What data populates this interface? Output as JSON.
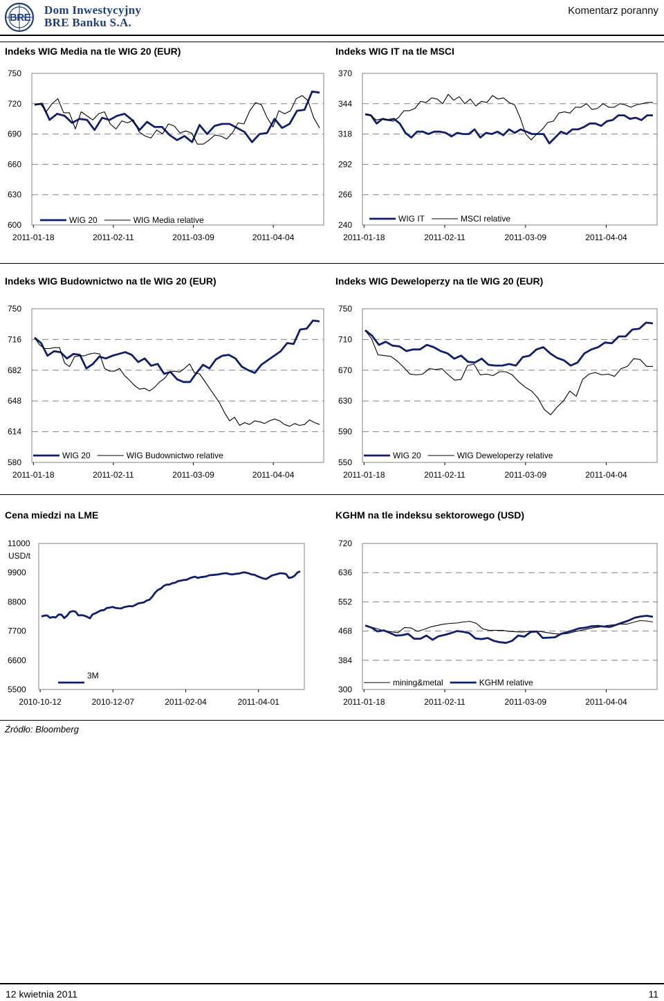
{
  "header": {
    "logo_line1": "Dom Inwestycyjny",
    "logo_line2": "BRE Banku S.A.",
    "logo_mark": "BRE",
    "report_type": "Komentarz poranny"
  },
  "colors": {
    "series_primary": "#0f1f6e",
    "series_secondary": "#000000",
    "grid": "#808080",
    "brand": "#1f3f7c"
  },
  "source_note": "Źródło: Bloomberg",
  "footer": {
    "date": "12 kwietnia 2011",
    "page": "11"
  },
  "chart_data": [
    {
      "type": "line",
      "title": "Indeks WIG Media na tle WIG 20 (EUR)",
      "unit": "",
      "yticks": [
        "750",
        "720",
        "690",
        "660",
        "630",
        "600"
      ],
      "ylim": [
        600,
        750
      ],
      "xticks": [
        "2011-01-18",
        "2011-02-11",
        "2011-03-09",
        "2011-04-04"
      ],
      "grid": true,
      "legend": "bottom",
      "series": [
        {
          "name": "WIG 20",
          "style": "thick",
          "values": [
            719,
            720,
            704,
            710,
            708,
            701,
            705,
            704,
            694,
            706,
            704,
            708,
            710,
            704,
            694,
            702,
            697,
            697,
            689,
            684,
            688,
            682,
            699,
            690,
            698,
            700,
            700,
            696,
            692,
            682,
            690,
            691,
            705,
            696,
            700,
            713,
            714,
            732,
            731
          ]
        },
        {
          "name": "WIG Media relative",
          "style": "thin",
          "values": [
            719,
            720,
            712,
            720,
            725,
            711,
            711,
            695,
            712,
            708,
            704,
            710,
            712,
            700,
            695,
            703,
            701,
            704,
            692,
            688,
            686,
            694,
            690,
            700,
            698,
            691,
            693,
            691,
            680,
            680,
            684,
            689,
            688,
            685,
            691,
            701,
            700,
            713,
            721,
            719,
            706,
            697,
            713,
            710,
            713,
            725,
            728,
            723,
            706,
            696
          ]
        }
      ]
    },
    {
      "type": "line",
      "title": "Indeks WIG IT na tle MSCI",
      "unit": "",
      "yticks": [
        "370",
        "344",
        "318",
        "292",
        "266",
        "240"
      ],
      "ylim": [
        240,
        370
      ],
      "xticks": [
        "2011-01-18",
        "2011-02-11",
        "2011-03-09",
        "2011-04-04"
      ],
      "grid": true,
      "legend": "bottom",
      "series": [
        {
          "name": "WIG IT",
          "style": "thick",
          "values": [
            335,
            334,
            327,
            331,
            330,
            331,
            327,
            319,
            315,
            320,
            320,
            318,
            320,
            320,
            319,
            316,
            319,
            318,
            318,
            322,
            315,
            319,
            318,
            320,
            317,
            322,
            319,
            322,
            320,
            318,
            318,
            318,
            310,
            315,
            320,
            318,
            322,
            322,
            324,
            327,
            327,
            325,
            329,
            330,
            334,
            334,
            331,
            332,
            330,
            334,
            334
          ]
        },
        {
          "name": "MSCI relative",
          "style": "thin",
          "values": [
            335,
            334,
            330,
            331,
            330,
            329,
            332,
            338,
            338,
            340,
            346,
            345,
            349,
            348,
            344,
            352,
            347,
            350,
            344,
            348,
            342,
            346,
            345,
            351,
            348,
            349,
            345,
            343,
            332,
            318,
            313,
            318,
            322,
            328,
            329,
            336,
            337,
            336,
            341,
            341,
            344,
            339,
            340,
            344,
            341,
            341,
            344,
            343,
            341,
            343,
            344,
            345,
            345
          ]
        }
      ]
    },
    {
      "type": "line",
      "title": "Indeks WIG Budownictwo na tle WIG 20 (EUR)",
      "unit": "",
      "yticks": [
        "750",
        "716",
        "682",
        "648",
        "614",
        "580"
      ],
      "ylim": [
        580,
        750
      ],
      "xticks": [
        "2011-01-18",
        "2011-02-11",
        "2011-03-09",
        "2011-04-04"
      ],
      "grid": true,
      "legend": "bottom",
      "series": [
        {
          "name": "WIG 20",
          "style": "thick",
          "values": [
            718,
            712,
            698,
            703,
            702,
            695,
            700,
            699,
            684,
            689,
            697,
            695,
            698,
            700,
            702,
            699,
            691,
            695,
            687,
            689,
            678,
            680,
            672,
            669,
            669,
            679,
            688,
            684,
            694,
            698,
            699,
            695,
            686,
            682,
            679,
            688,
            693,
            698,
            703,
            712,
            711,
            727,
            728,
            737,
            736
          ]
        },
        {
          "name": "WIG Budownictwo relative",
          "style": "thin",
          "values": [
            718,
            710,
            706,
            706,
            707,
            707,
            690,
            686,
            697,
            698,
            698,
            700,
            701,
            700,
            684,
            681,
            681,
            684,
            676,
            671,
            665,
            661,
            662,
            659,
            663,
            669,
            673,
            680,
            681,
            680,
            684,
            689,
            679,
            678,
            670,
            662,
            654,
            646,
            635,
            626,
            630,
            621,
            624,
            622,
            626,
            625,
            623,
            626,
            628,
            626,
            622,
            620,
            623,
            621,
            622,
            627,
            624,
            622
          ]
        }
      ]
    },
    {
      "type": "line",
      "title": "Indeks WIG Deweloperzy na tle WIG 20 (EUR)",
      "unit": "",
      "yticks": [
        "750",
        "710",
        "670",
        "630",
        "590",
        "550"
      ],
      "ylim": [
        550,
        750
      ],
      "xticks": [
        "2011-01-18",
        "2011-02-11",
        "2011-03-09",
        "2011-04-04"
      ],
      "grid": true,
      "legend": "bottom",
      "series": [
        {
          "name": "WIG 20",
          "style": "thick",
          "values": [
            722,
            715,
            703,
            707,
            702,
            701,
            695,
            697,
            697,
            703,
            700,
            695,
            692,
            685,
            689,
            681,
            680,
            685,
            677,
            676,
            676,
            678,
            676,
            687,
            689,
            697,
            700,
            692,
            686,
            683,
            676,
            680,
            692,
            697,
            700,
            706,
            705,
            714,
            714,
            723,
            724,
            732,
            731
          ]
        },
        {
          "name": "WIG Deweloperzy relative",
          "style": "thin",
          "values": [
            722,
            711,
            690,
            689,
            688,
            682,
            674,
            665,
            664,
            665,
            672,
            671,
            672,
            664,
            657,
            658,
            676,
            678,
            664,
            665,
            663,
            668,
            668,
            664,
            655,
            648,
            643,
            634,
            619,
            612,
            622,
            630,
            643,
            636,
            658,
            665,
            667,
            664,
            665,
            662,
            672,
            675,
            685,
            684,
            675,
            675
          ]
        }
      ]
    },
    {
      "type": "line",
      "title": "Cena miedzi na LME",
      "unit": "USD/t",
      "yticks": [
        "11000",
        "9900",
        "8800",
        "7700",
        "6600",
        "5500"
      ],
      "ylim": [
        5500,
        11000
      ],
      "xticks": [
        "2010-10-12",
        "2010-12-07",
        "2011-02-04",
        "2011-04-01"
      ],
      "grid": false,
      "legend": "top-left",
      "series": [
        {
          "name": "3M",
          "style": "thick",
          "values": [
            8250,
            8280,
            8290,
            8200,
            8230,
            8210,
            8320,
            8320,
            8190,
            8280,
            8420,
            8450,
            8430,
            8290,
            8300,
            8280,
            8240,
            8180,
            8330,
            8370,
            8430,
            8480,
            8490,
            8570,
            8580,
            8610,
            8570,
            8560,
            8550,
            8600,
            8620,
            8640,
            8630,
            8680,
            8740,
            8760,
            8780,
            8850,
            8880,
            9000,
            9150,
            9250,
            9300,
            9400,
            9450,
            9450,
            9500,
            9520,
            9580,
            9600,
            9620,
            9630,
            9680,
            9720,
            9750,
            9700,
            9730,
            9740,
            9760,
            9800,
            9810,
            9820,
            9830,
            9850,
            9870,
            9880,
            9850,
            9830,
            9850,
            9860,
            9880,
            9910,
            9900,
            9870,
            9830,
            9820,
            9760,
            9720,
            9680,
            9660,
            9720,
            9790,
            9820,
            9850,
            9880,
            9870,
            9850,
            9700,
            9720,
            9780,
            9900,
            9950
          ]
        }
      ]
    },
    {
      "type": "line",
      "title": "KGHM na tle indeksu sektorowego (USD)",
      "unit": "",
      "yticks": [
        "720",
        "636",
        "552",
        "468",
        "384",
        "300"
      ],
      "ylim": [
        300,
        720
      ],
      "xticks": [
        "2011-01-18",
        "2011-02-11",
        "2011-03-09",
        "2011-04-04"
      ],
      "grid": true,
      "legend": "bottom",
      "series": [
        {
          "name": "mining&metal",
          "style": "thin",
          "values": [
            484,
            479,
            474,
            467,
            466,
            463,
            478,
            477,
            467,
            473,
            480,
            484,
            488,
            490,
            491,
            494,
            496,
            490,
            474,
            470,
            470,
            470,
            467,
            466,
            465,
            467,
            468,
            466,
            463,
            460,
            459,
            461,
            466,
            470,
            474,
            478,
            480,
            484,
            486,
            488,
            488,
            493,
            498,
            497,
            494
          ]
        },
        {
          "name": "KGHM relative",
          "style": "thick",
          "values": [
            484,
            478,
            467,
            470,
            463,
            455,
            456,
            460,
            446,
            446,
            455,
            443,
            453,
            457,
            462,
            468,
            466,
            462,
            447,
            445,
            448,
            440,
            436,
            434,
            440,
            455,
            452,
            465,
            467,
            448,
            449,
            450,
            460,
            465,
            470,
            476,
            478,
            482,
            483,
            481,
            480,
            486,
            492,
            498,
            506,
            510,
            512,
            509
          ]
        }
      ]
    }
  ]
}
